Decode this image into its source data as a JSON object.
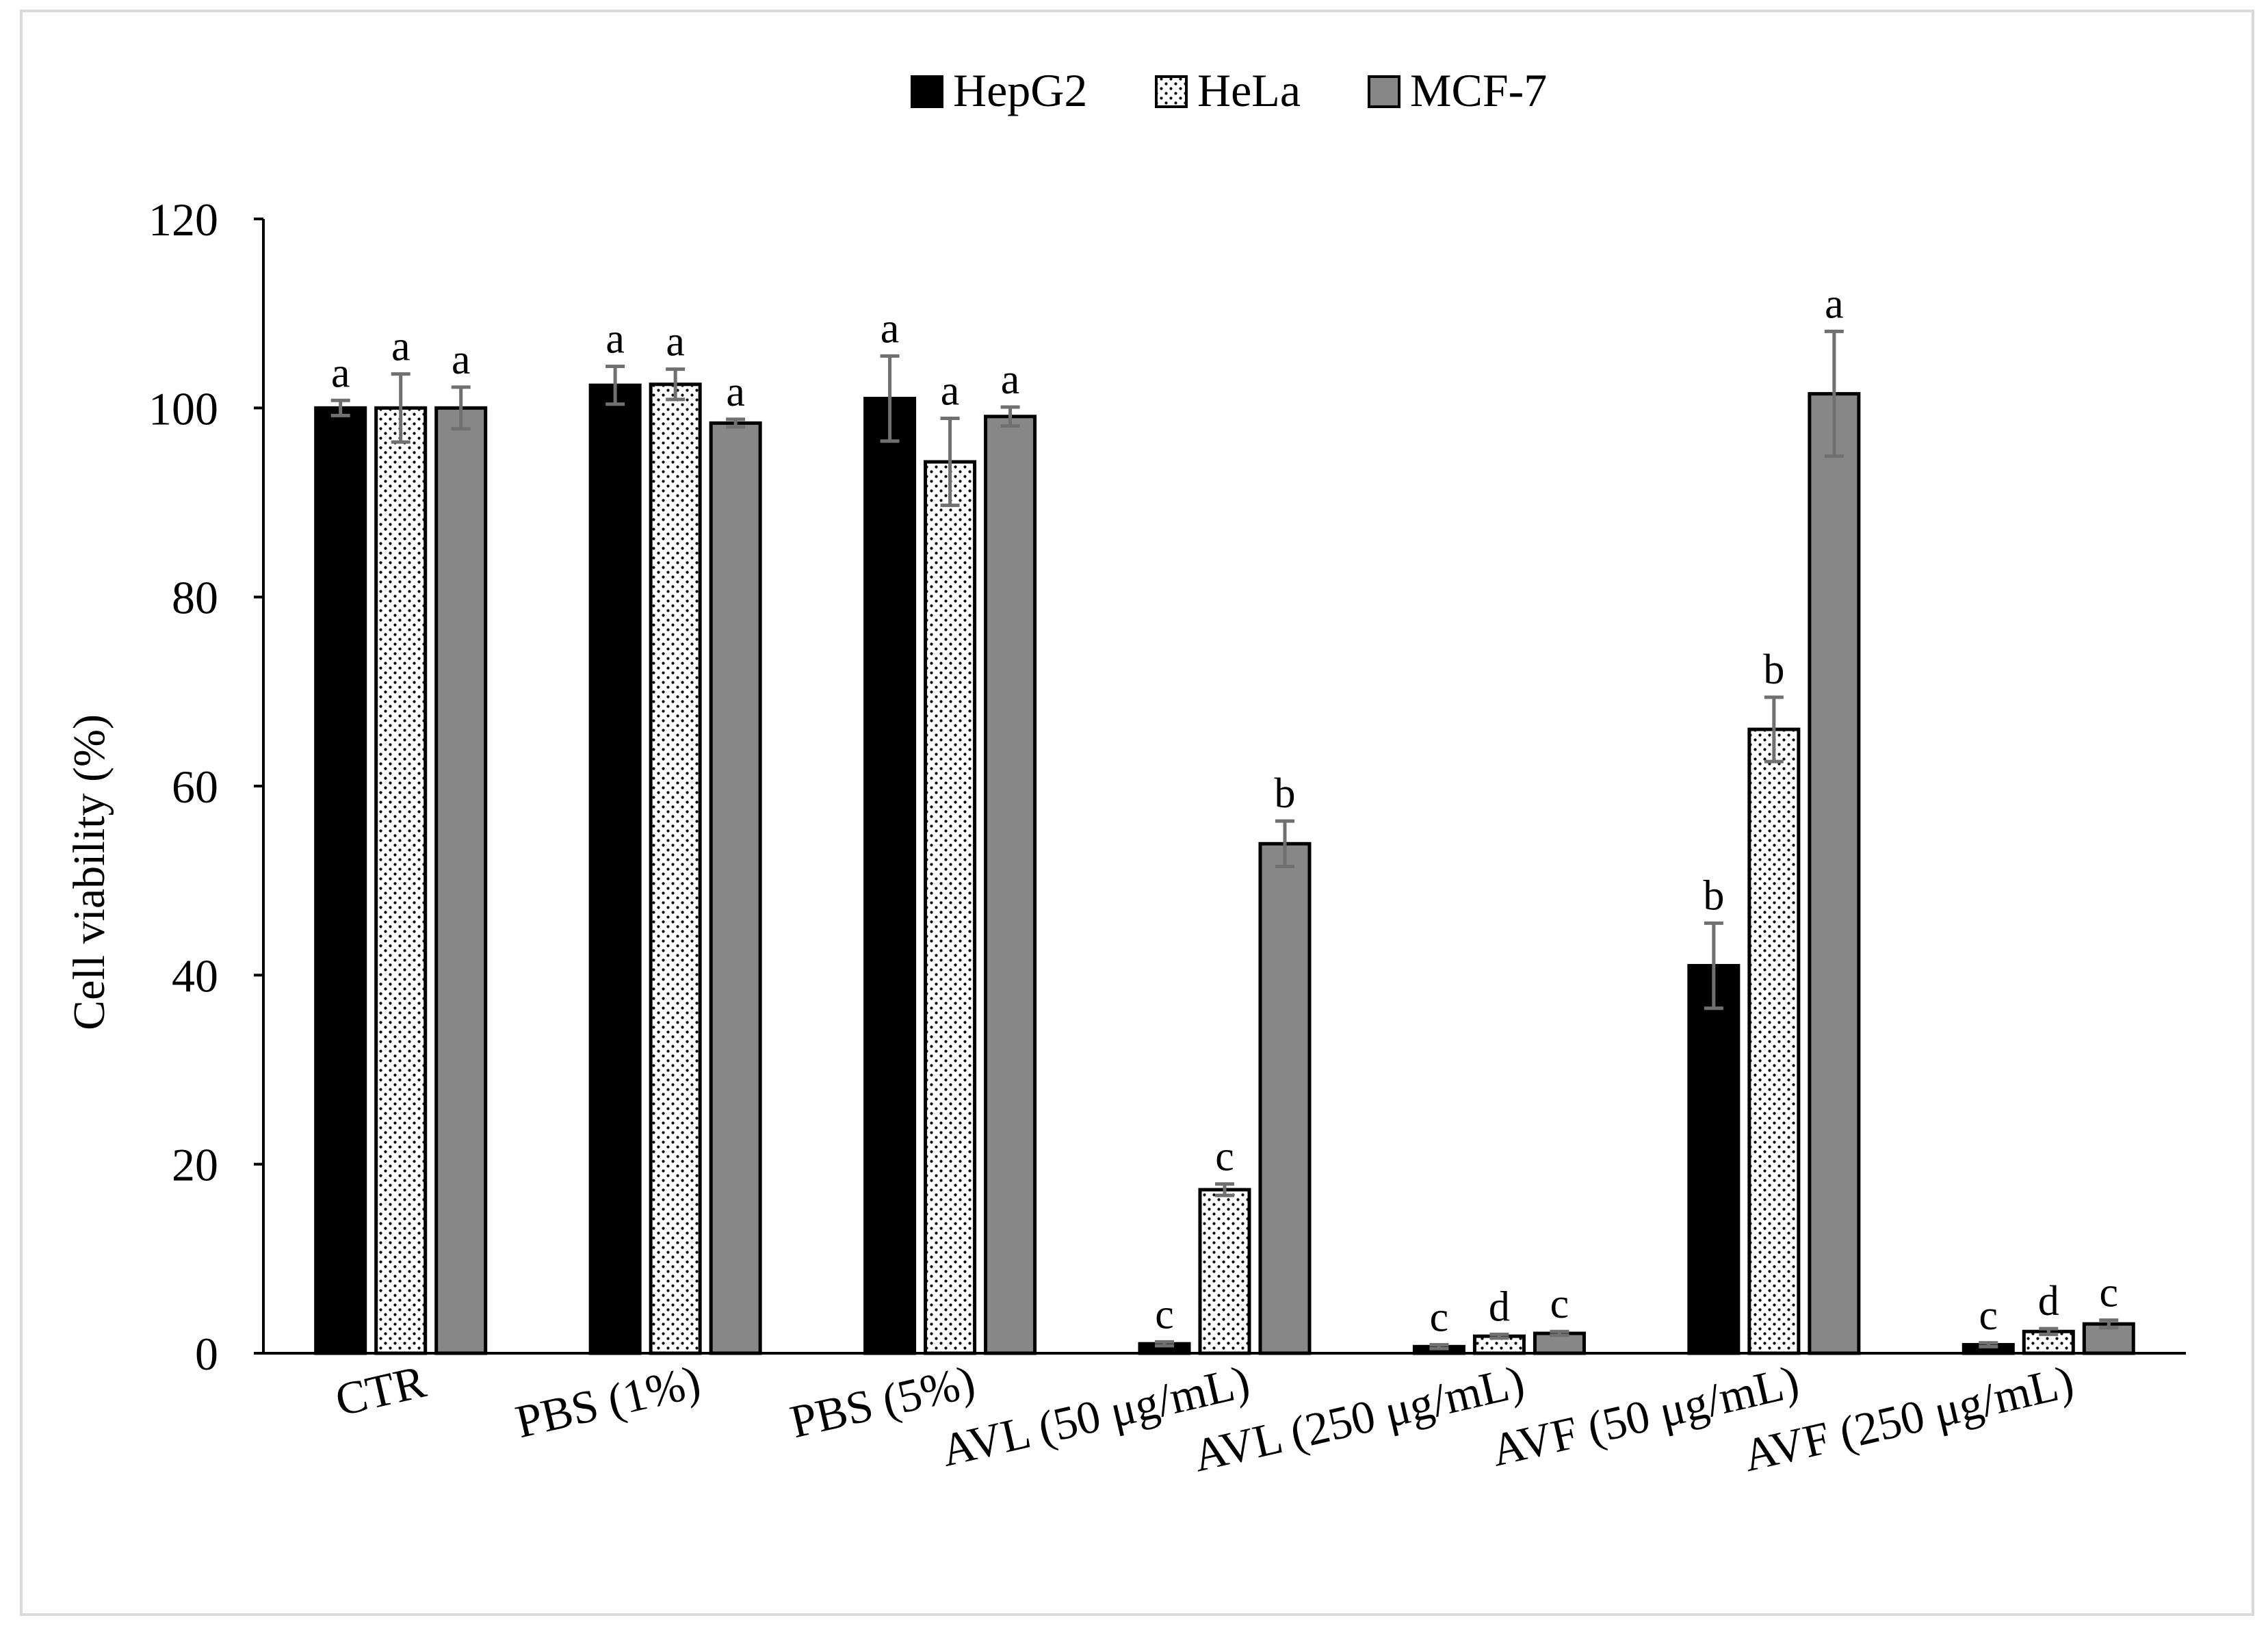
{
  "chart_data": {
    "type": "bar",
    "title": "",
    "xlabel": "",
    "ylabel": "Cell viability (%)",
    "ylim": [
      0,
      120
    ],
    "yticks": [
      0,
      20,
      40,
      60,
      80,
      100,
      120
    ],
    "grid": false,
    "legend_position": "top-center",
    "categories": [
      "CTR",
      "PBS (1%)",
      "PBS (5%)",
      "AVL (50 μg/mL)",
      "AVL (250 μg/mL)",
      "AVF (50 μg/mL)",
      "AVF (250 μg/mL)"
    ],
    "series": [
      {
        "name": "HepG2",
        "pattern": "solid-black",
        "color": "#000000",
        "values": [
          100.0,
          102.4,
          101.0,
          1.0,
          0.7,
          41.0,
          0.9
        ],
        "errors": [
          0.8,
          2.0,
          4.5,
          0.2,
          0.2,
          4.5,
          0.2
        ],
        "letters": [
          "a",
          "a",
          "a",
          "c",
          "c",
          "b",
          "c"
        ]
      },
      {
        "name": "HeLa",
        "pattern": "dotted-white",
        "color": "#ffffff",
        "values": [
          100.0,
          102.5,
          94.3,
          17.3,
          1.8,
          66.0,
          2.3
        ],
        "errors": [
          3.6,
          1.6,
          4.6,
          0.6,
          0.2,
          3.4,
          0.3
        ],
        "letters": [
          "a",
          "a",
          "a",
          "c",
          "d",
          "b",
          "d"
        ]
      },
      {
        "name": "MCF-7",
        "pattern": "solid-gray",
        "color": "#878787",
        "values": [
          100.0,
          98.4,
          99.1,
          53.9,
          2.1,
          101.5,
          3.1
        ],
        "errors": [
          2.2,
          0.4,
          1.0,
          2.4,
          0.2,
          6.6,
          0.4
        ],
        "letters": [
          "a",
          "a",
          "a",
          "b",
          "c",
          "a",
          "c"
        ]
      }
    ]
  }
}
